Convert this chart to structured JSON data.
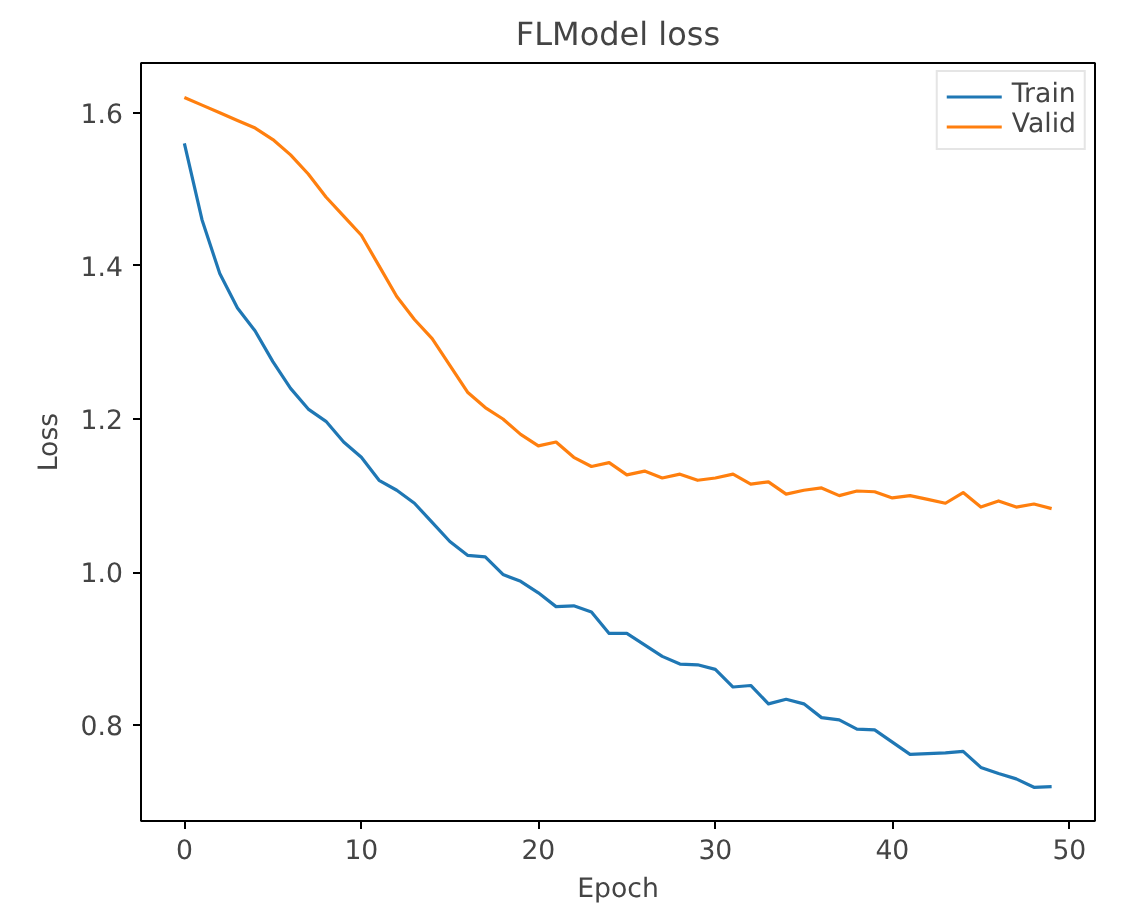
{
  "chart_data": {
    "type": "line",
    "title": "FLModel loss",
    "xlabel": "Epoch",
    "ylabel": "Loss",
    "x": [
      0,
      1,
      2,
      3,
      4,
      5,
      6,
      7,
      8,
      9,
      10,
      11,
      12,
      13,
      14,
      15,
      16,
      17,
      18,
      19,
      20,
      21,
      22,
      23,
      24,
      25,
      26,
      27,
      28,
      29,
      30,
      31,
      32,
      33,
      34,
      35,
      36,
      37,
      38,
      39,
      40,
      41,
      42,
      43,
      44,
      45,
      46,
      47,
      48,
      49
    ],
    "series": [
      {
        "name": "Train",
        "color": "#1f77b4",
        "values": [
          1.56,
          1.46,
          1.39,
          1.345,
          1.315,
          1.275,
          1.24,
          1.213,
          1.197,
          1.17,
          1.15,
          1.12,
          1.107,
          1.09,
          1.065,
          1.04,
          1.022,
          1.02,
          0.997,
          0.988,
          0.973,
          0.955,
          0.956,
          0.948,
          0.92,
          0.92,
          0.905,
          0.89,
          0.88,
          0.879,
          0.873,
          0.85,
          0.852,
          0.828,
          0.834,
          0.828,
          0.81,
          0.807,
          0.795,
          0.794,
          0.778,
          0.762,
          0.763,
          0.764,
          0.766,
          0.745,
          0.737,
          0.73,
          0.719,
          0.72
        ]
      },
      {
        "name": "Valid",
        "color": "#ff7f0e",
        "values": [
          1.62,
          1.61,
          1.6,
          1.59,
          1.58,
          1.565,
          1.545,
          1.52,
          1.49,
          1.465,
          1.44,
          1.4,
          1.36,
          1.33,
          1.305,
          1.27,
          1.235,
          1.215,
          1.2,
          1.18,
          1.165,
          1.17,
          1.15,
          1.138,
          1.143,
          1.127,
          1.132,
          1.123,
          1.128,
          1.12,
          1.123,
          1.128,
          1.115,
          1.118,
          1.102,
          1.107,
          1.11,
          1.1,
          1.106,
          1.105,
          1.097,
          1.1,
          1.095,
          1.09,
          1.104,
          1.085,
          1.093,
          1.085,
          1.089,
          1.083
        ]
      }
    ],
    "xlim": [
      -2.45,
      51.45
    ],
    "xticks": [
      0,
      10,
      20,
      30,
      40,
      50
    ],
    "ylim": [
      0.675,
      1.665
    ],
    "yticks": [
      0.8,
      {
        "value": 1,
        "label": "1.0"
      },
      1.2,
      1.4,
      1.6
    ],
    "grid": false,
    "legend": "top right",
    "line_style": "solid",
    "marker": "none"
  }
}
